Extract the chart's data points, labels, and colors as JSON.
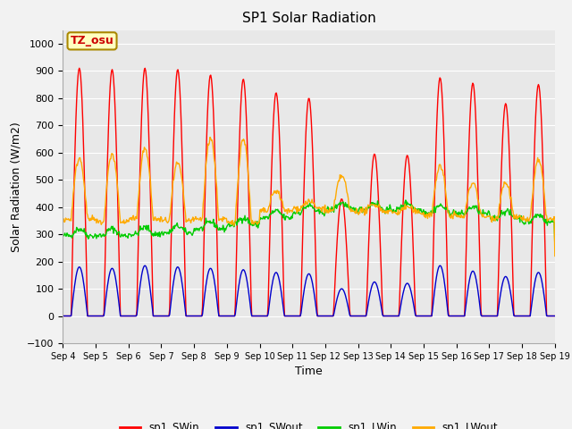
{
  "title": "SP1 Solar Radiation",
  "xlabel": "Time",
  "ylabel": "Solar Radiation (W/m2)",
  "ylim": [
    -100,
    1050
  ],
  "colors": {
    "SWin": "#ff0000",
    "SWout": "#0000cc",
    "LWin": "#00cc00",
    "LWout": "#ffaa00"
  },
  "annotation": "TZ_osu",
  "background_plot": "#e8e8e8",
  "legend_labels": [
    "sp1_SWin",
    "sp1_SWout",
    "sp1_LWin",
    "sp1_LWout"
  ],
  "x_tick_labels": [
    "Sep 4",
    "Sep 5",
    "Sep 6",
    "Sep 7",
    "Sep 8",
    "Sep 9",
    "Sep 10",
    "Sep 11",
    "Sep 12",
    "Sep 13",
    "Sep 14",
    "Sep 15",
    "Sep 16",
    "Sep 17",
    "Sep 18",
    "Sep 19"
  ],
  "sw_peaks": [
    910,
    905,
    910,
    905,
    885,
    870,
    820,
    800,
    430,
    595,
    590,
    875,
    855,
    780,
    850
  ],
  "sw_out_peaks": [
    180,
    175,
    185,
    180,
    175,
    170,
    160,
    155,
    100,
    125,
    120,
    185,
    165,
    145,
    160
  ],
  "lw_out_day_peaks": [
    580,
    595,
    615,
    560,
    655,
    650,
    460,
    420,
    515,
    410,
    400,
    550,
    490,
    490,
    570
  ],
  "lw_out_night": [
    355,
    345,
    355,
    350,
    355,
    340,
    385,
    395,
    385,
    385,
    380,
    370,
    365,
    360,
    355
  ],
  "lw_in_base": [
    295,
    295,
    300,
    305,
    320,
    335,
    360,
    380,
    390,
    390,
    390,
    380,
    375,
    360,
    345
  ]
}
